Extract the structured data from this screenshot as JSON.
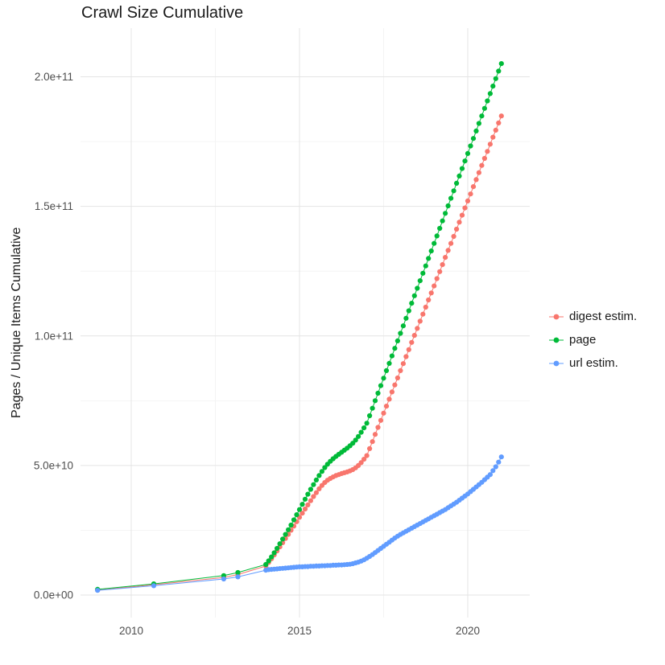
{
  "title": "Crawl Size Cumulative",
  "axes": {
    "y_label": "Pages / Unique Items Cumulative",
    "y_ticks": [
      {
        "label": "0.0e+00",
        "value_billions": 0
      },
      {
        "label": "5.0e+10",
        "value_billions": 50
      },
      {
        "label": "1.0e+11",
        "value_billions": 100
      },
      {
        "label": "1.5e+11",
        "value_billions": 150
      },
      {
        "label": "2.0e+11",
        "value_billions": 200
      }
    ],
    "x_ticks": [
      {
        "label": "2010",
        "value": 2010
      },
      {
        "label": "2015",
        "value": 2015
      },
      {
        "label": "2020",
        "value": 2020
      }
    ],
    "y_minor_ticks_billions": [
      25,
      75,
      125,
      175
    ],
    "x_minor_ticks": [
      2012.5,
      2017.5
    ]
  },
  "legend": {
    "items": [
      {
        "label": "digest estim.",
        "color": "#F8766D"
      },
      {
        "label": "page",
        "color": "#00BA38"
      },
      {
        "label": "url estim.",
        "color": "#619CFF"
      }
    ]
  },
  "colors": {
    "grid_major": "#e4e4e4",
    "grid_minor": "#f4f4f4",
    "tick_text": "#4d4d4d",
    "title_text": "#1a1a1a"
  },
  "chart_data": {
    "type": "scatter",
    "title": "Crawl Size Cumulative",
    "xlabel": "",
    "ylabel": "Pages / Unique Items Cumulative",
    "legend_position": "right",
    "grid": true,
    "points_format": "[decimal_year, cumulative_count_in_billions]",
    "y_unit": "items (1e9 = billions); axis shown in scientific notation",
    "xlim": [
      2008.5,
      2021.8
    ],
    "ylim_billions": [
      0,
      219
    ],
    "series": [
      {
        "name": "digest estim.",
        "color": "#F8766D",
        "points": [
          [
            2009.0,
            1.9
          ],
          [
            2010.67,
            4.0
          ],
          [
            2012.75,
            6.8
          ],
          [
            2013.17,
            7.9
          ],
          [
            2014.0,
            11.2
          ],
          [
            2014.083,
            12.6
          ],
          [
            2014.167,
            14.0
          ],
          [
            2014.25,
            15.5
          ],
          [
            2014.333,
            17.0
          ],
          [
            2014.417,
            18.6
          ],
          [
            2014.5,
            20.2
          ],
          [
            2014.583,
            21.8
          ],
          [
            2014.667,
            23.4
          ],
          [
            2014.75,
            25.0
          ],
          [
            2014.833,
            26.6
          ],
          [
            2014.917,
            28.3
          ],
          [
            2015.0,
            30.0
          ],
          [
            2015.083,
            31.6
          ],
          [
            2015.167,
            33.2
          ],
          [
            2015.25,
            34.8
          ],
          [
            2015.333,
            36.4
          ],
          [
            2015.417,
            38.0
          ],
          [
            2015.5,
            39.5
          ],
          [
            2015.583,
            41.0
          ],
          [
            2015.667,
            42.3
          ],
          [
            2015.75,
            43.4
          ],
          [
            2015.833,
            44.3
          ],
          [
            2015.917,
            45.0
          ],
          [
            2016.0,
            45.6
          ],
          [
            2016.083,
            46.1
          ],
          [
            2016.167,
            46.5
          ],
          [
            2016.25,
            46.9
          ],
          [
            2016.333,
            47.2
          ],
          [
            2016.417,
            47.5
          ],
          [
            2016.5,
            47.9
          ],
          [
            2016.583,
            48.4
          ],
          [
            2016.667,
            49.1
          ],
          [
            2016.75,
            50.0
          ],
          [
            2016.833,
            51.1
          ],
          [
            2016.917,
            52.4
          ],
          [
            2017.0,
            53.8
          ],
          [
            2017.083,
            56.5
          ],
          [
            2017.167,
            59.2
          ],
          [
            2017.25,
            62.0
          ],
          [
            2017.333,
            64.7
          ],
          [
            2017.417,
            67.4
          ],
          [
            2017.5,
            70.2
          ],
          [
            2017.583,
            72.9
          ],
          [
            2017.667,
            75.6
          ],
          [
            2017.75,
            78.4
          ],
          [
            2017.833,
            81.1
          ],
          [
            2017.917,
            83.8
          ],
          [
            2018.0,
            86.6
          ],
          [
            2018.083,
            89.3
          ],
          [
            2018.167,
            92.0
          ],
          [
            2018.25,
            94.7
          ],
          [
            2018.333,
            97.5
          ],
          [
            2018.417,
            100.2
          ],
          [
            2018.5,
            102.9
          ],
          [
            2018.583,
            105.7
          ],
          [
            2018.667,
            108.4
          ],
          [
            2018.75,
            111.1
          ],
          [
            2018.833,
            113.9
          ],
          [
            2018.917,
            116.6
          ],
          [
            2019.0,
            119.3
          ],
          [
            2019.083,
            122.1
          ],
          [
            2019.167,
            124.8
          ],
          [
            2019.25,
            127.5
          ],
          [
            2019.333,
            130.3
          ],
          [
            2019.417,
            133.0
          ],
          [
            2019.5,
            135.7
          ],
          [
            2019.583,
            138.4
          ],
          [
            2019.667,
            141.2
          ],
          [
            2019.75,
            143.9
          ],
          [
            2019.833,
            146.6
          ],
          [
            2019.917,
            149.4
          ],
          [
            2020.0,
            152.1
          ],
          [
            2020.083,
            154.8
          ],
          [
            2020.167,
            157.6
          ],
          [
            2020.25,
            160.3
          ],
          [
            2020.333,
            163.0
          ],
          [
            2020.417,
            165.8
          ],
          [
            2020.5,
            168.5
          ],
          [
            2020.583,
            171.2
          ],
          [
            2020.667,
            174.0
          ],
          [
            2020.75,
            176.7
          ],
          [
            2020.833,
            179.4
          ],
          [
            2020.917,
            182.2
          ],
          [
            2021.0,
            184.9
          ]
        ]
      },
      {
        "name": "page",
        "color": "#00BA38",
        "points": [
          [
            2009.0,
            2.2
          ],
          [
            2010.67,
            4.3
          ],
          [
            2012.75,
            7.5
          ],
          [
            2013.17,
            8.7
          ],
          [
            2014.0,
            11.8
          ],
          [
            2014.083,
            13.2
          ],
          [
            2014.167,
            14.7
          ],
          [
            2014.25,
            16.3
          ],
          [
            2014.333,
            18.0
          ],
          [
            2014.417,
            19.8
          ],
          [
            2014.5,
            21.6
          ],
          [
            2014.583,
            23.4
          ],
          [
            2014.667,
            25.2
          ],
          [
            2014.75,
            27.0
          ],
          [
            2014.833,
            29.0
          ],
          [
            2014.917,
            31.0
          ],
          [
            2015.0,
            33.0
          ],
          [
            2015.083,
            35.0
          ],
          [
            2015.167,
            37.0
          ],
          [
            2015.25,
            38.9
          ],
          [
            2015.333,
            40.8
          ],
          [
            2015.417,
            42.6
          ],
          [
            2015.5,
            44.4
          ],
          [
            2015.583,
            46.1
          ],
          [
            2015.667,
            47.7
          ],
          [
            2015.75,
            49.2
          ],
          [
            2015.833,
            50.5
          ],
          [
            2015.917,
            51.6
          ],
          [
            2016.0,
            52.6
          ],
          [
            2016.083,
            53.5
          ],
          [
            2016.167,
            54.3
          ],
          [
            2016.25,
            55.1
          ],
          [
            2016.333,
            55.9
          ],
          [
            2016.417,
            56.7
          ],
          [
            2016.5,
            57.6
          ],
          [
            2016.583,
            58.6
          ],
          [
            2016.667,
            59.8
          ],
          [
            2016.75,
            61.2
          ],
          [
            2016.833,
            62.8
          ],
          [
            2016.917,
            64.5
          ],
          [
            2017.0,
            66.3
          ],
          [
            2017.083,
            69.2
          ],
          [
            2017.167,
            72.1
          ],
          [
            2017.25,
            75.0
          ],
          [
            2017.333,
            77.9
          ],
          [
            2017.417,
            80.8
          ],
          [
            2017.5,
            83.7
          ],
          [
            2017.583,
            86.6
          ],
          [
            2017.667,
            89.4
          ],
          [
            2017.75,
            92.3
          ],
          [
            2017.833,
            95.2
          ],
          [
            2017.917,
            98.1
          ],
          [
            2018.0,
            101.0
          ],
          [
            2018.083,
            103.9
          ],
          [
            2018.167,
            106.8
          ],
          [
            2018.25,
            109.7
          ],
          [
            2018.333,
            112.6
          ],
          [
            2018.417,
            115.5
          ],
          [
            2018.5,
            118.4
          ],
          [
            2018.583,
            121.3
          ],
          [
            2018.667,
            124.2
          ],
          [
            2018.75,
            127.0
          ],
          [
            2018.833,
            129.9
          ],
          [
            2018.917,
            132.8
          ],
          [
            2019.0,
            135.7
          ],
          [
            2019.083,
            138.6
          ],
          [
            2019.167,
            141.5
          ],
          [
            2019.25,
            144.4
          ],
          [
            2019.333,
            147.3
          ],
          [
            2019.417,
            150.2
          ],
          [
            2019.5,
            153.1
          ],
          [
            2019.583,
            156.0
          ],
          [
            2019.667,
            158.9
          ],
          [
            2019.75,
            161.7
          ],
          [
            2019.833,
            164.6
          ],
          [
            2019.917,
            167.5
          ],
          [
            2020.0,
            170.4
          ],
          [
            2020.083,
            173.3
          ],
          [
            2020.167,
            176.2
          ],
          [
            2020.25,
            179.1
          ],
          [
            2020.333,
            182.0
          ],
          [
            2020.417,
            184.9
          ],
          [
            2020.5,
            187.8
          ],
          [
            2020.583,
            190.7
          ],
          [
            2020.667,
            193.5
          ],
          [
            2020.75,
            196.4
          ],
          [
            2020.833,
            199.3
          ],
          [
            2020.917,
            202.2
          ],
          [
            2021.0,
            205.1
          ]
        ]
      },
      {
        "name": "url estim.",
        "color": "#619CFF",
        "points": [
          [
            2009.0,
            1.8
          ],
          [
            2010.67,
            3.6
          ],
          [
            2012.75,
            6.2
          ],
          [
            2013.17,
            7.0
          ],
          [
            2014.0,
            9.6
          ],
          [
            2014.083,
            9.8
          ],
          [
            2014.167,
            9.9
          ],
          [
            2014.25,
            10.0
          ],
          [
            2014.333,
            10.1
          ],
          [
            2014.417,
            10.2
          ],
          [
            2014.5,
            10.3
          ],
          [
            2014.583,
            10.4
          ],
          [
            2014.667,
            10.5
          ],
          [
            2014.75,
            10.6
          ],
          [
            2014.833,
            10.7
          ],
          [
            2014.917,
            10.8
          ],
          [
            2015.0,
            10.9
          ],
          [
            2015.083,
            10.9
          ],
          [
            2015.167,
            11.0
          ],
          [
            2015.25,
            11.0
          ],
          [
            2015.333,
            11.1
          ],
          [
            2015.417,
            11.1
          ],
          [
            2015.5,
            11.2
          ],
          [
            2015.583,
            11.2
          ],
          [
            2015.667,
            11.3
          ],
          [
            2015.75,
            11.3
          ],
          [
            2015.833,
            11.4
          ],
          [
            2015.917,
            11.4
          ],
          [
            2016.0,
            11.5
          ],
          [
            2016.083,
            11.5
          ],
          [
            2016.167,
            11.6
          ],
          [
            2016.25,
            11.6
          ],
          [
            2016.333,
            11.7
          ],
          [
            2016.417,
            11.8
          ],
          [
            2016.5,
            11.9
          ],
          [
            2016.583,
            12.1
          ],
          [
            2016.667,
            12.4
          ],
          [
            2016.75,
            12.7
          ],
          [
            2016.833,
            13.1
          ],
          [
            2016.917,
            13.6
          ],
          [
            2017.0,
            14.2
          ],
          [
            2017.083,
            14.9
          ],
          [
            2017.167,
            15.6
          ],
          [
            2017.25,
            16.4
          ],
          [
            2017.333,
            17.2
          ],
          [
            2017.417,
            18.0
          ],
          [
            2017.5,
            18.8
          ],
          [
            2017.583,
            19.6
          ],
          [
            2017.667,
            20.4
          ],
          [
            2017.75,
            21.2
          ],
          [
            2017.833,
            22.0
          ],
          [
            2017.917,
            22.7
          ],
          [
            2018.0,
            23.4
          ],
          [
            2018.083,
            24.0
          ],
          [
            2018.167,
            24.6
          ],
          [
            2018.25,
            25.2
          ],
          [
            2018.333,
            25.8
          ],
          [
            2018.417,
            26.4
          ],
          [
            2018.5,
            27.0
          ],
          [
            2018.583,
            27.6
          ],
          [
            2018.667,
            28.2
          ],
          [
            2018.75,
            28.8
          ],
          [
            2018.833,
            29.4
          ],
          [
            2018.917,
            30.0
          ],
          [
            2019.0,
            30.6
          ],
          [
            2019.083,
            31.2
          ],
          [
            2019.167,
            31.8
          ],
          [
            2019.25,
            32.4
          ],
          [
            2019.333,
            33.0
          ],
          [
            2019.417,
            33.7
          ],
          [
            2019.5,
            34.4
          ],
          [
            2019.583,
            35.1
          ],
          [
            2019.667,
            35.8
          ],
          [
            2019.75,
            36.6
          ],
          [
            2019.833,
            37.4
          ],
          [
            2019.917,
            38.2
          ],
          [
            2020.0,
            39.0
          ],
          [
            2020.083,
            39.9
          ],
          [
            2020.167,
            40.8
          ],
          [
            2020.25,
            41.7
          ],
          [
            2020.333,
            42.6
          ],
          [
            2020.417,
            43.5
          ],
          [
            2020.5,
            44.5
          ],
          [
            2020.583,
            45.5
          ],
          [
            2020.667,
            46.5
          ],
          [
            2020.75,
            48.0
          ],
          [
            2020.833,
            49.5
          ],
          [
            2020.917,
            51.3
          ],
          [
            2021.0,
            53.3
          ]
        ]
      }
    ]
  }
}
